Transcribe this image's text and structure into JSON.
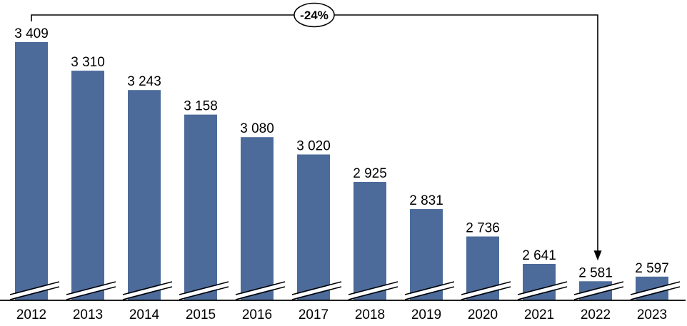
{
  "chart_data": {
    "type": "bar",
    "title": "",
    "xlabel": "",
    "ylabel": "",
    "categories": [
      "2012",
      "2013",
      "2014",
      "2015",
      "2016",
      "2017",
      "2018",
      "2019",
      "2020",
      "2021",
      "2022",
      "2023"
    ],
    "values": [
      3409,
      3310,
      3243,
      3158,
      3080,
      3020,
      2925,
      2831,
      2736,
      2641,
      2581,
      2597
    ],
    "value_labels": [
      "3 409",
      "3 310",
      "3 243",
      "3 158",
      "3 080",
      "3 020",
      "2 925",
      "2 831",
      "2 736",
      "2 641",
      "2 581",
      "2 597"
    ],
    "ylim": [
      2515,
      3450
    ],
    "axis_broken": true,
    "grid": false,
    "legend": "none",
    "colors": {
      "bar": "#4c6b9b",
      "line": "#000000",
      "text": "#000000",
      "background": "#ffffff"
    },
    "annotation": {
      "label": "-24%",
      "from_category": "2012",
      "to_category": "2022"
    }
  }
}
